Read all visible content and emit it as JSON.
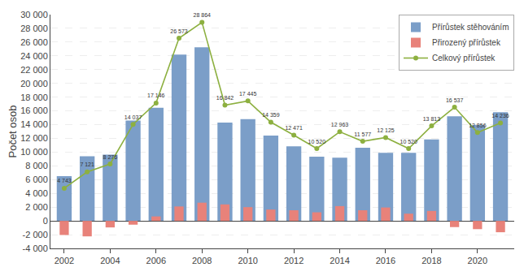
{
  "chart_data": {
    "type": "bar",
    "ylabel": "Počet osob",
    "categories": [
      "2002",
      null,
      "2004",
      null,
      "2006",
      null,
      "2008",
      null,
      "2010",
      null,
      "2012",
      null,
      "2014",
      null,
      "2016",
      null,
      "2018",
      null,
      "2020",
      null
    ],
    "series": [
      {
        "name": "Přírůstek stěhováním",
        "type": "bar",
        "color": "#7B9EC8",
        "values": [
          6500,
          9400,
          9650,
          14600,
          16450,
          24200,
          25250,
          14300,
          14800,
          12400,
          10850,
          9350,
          9200,
          10650,
          9900,
          9900,
          11850,
          15200,
          13950,
          15800
        ]
      },
      {
        "name": "Přirozený přírůstek",
        "type": "bar",
        "color": "#E8827A",
        "values": [
          -2050,
          -2250,
          -950,
          -550,
          650,
          2100,
          2650,
          2400,
          2000,
          1650,
          1550,
          1250,
          2150,
          1550,
          1950,
          1050,
          1450,
          -900,
          -1200,
          -1650
        ]
      },
      {
        "name": "Celkový přírůstek",
        "type": "line",
        "color": "#8DB040",
        "marker": "circle",
        "data_labels": true,
        "values": [
          4743,
          7121,
          8276,
          14037,
          17146,
          26573,
          28864,
          16842,
          17445,
          14359,
          12471,
          10520,
          12963,
          11577,
          12125,
          10520,
          13813,
          16537,
          12856,
          14236
        ],
        "value_labels": [
          "4 743",
          "7 121",
          "8 276",
          "14 037",
          "17 146",
          "26 573",
          "28 864",
          "16 842",
          "17 445",
          "14 359",
          "12 471",
          "10 520",
          "12 963",
          "11 577",
          "12 125",
          "10 520",
          "13 813",
          "16 537",
          "12 856",
          "14 236"
        ]
      }
    ],
    "ylim": [
      -4000,
      30000
    ],
    "yticks": [
      {
        "value": -4000,
        "label": "-4 000"
      },
      {
        "value": -2000,
        "label": "-2 000"
      },
      0,
      {
        "value": 2000,
        "label": "2 000"
      },
      {
        "value": 4000,
        "label": "4 000"
      },
      {
        "value": 6000,
        "label": "6 000"
      },
      {
        "value": 8000,
        "label": "8 000"
      },
      {
        "value": 10000,
        "label": "10 000"
      },
      {
        "value": 12000,
        "label": "12 000"
      },
      {
        "value": 14000,
        "label": "14 000"
      },
      {
        "value": 16000,
        "label": "16 000"
      },
      {
        "value": 18000,
        "label": "18 000"
      },
      {
        "value": 20000,
        "label": "20 000"
      },
      {
        "value": 22000,
        "label": "22 000"
      },
      {
        "value": 24000,
        "label": "24 000"
      },
      {
        "value": 26000,
        "label": "26 000"
      },
      {
        "value": 28000,
        "label": "28 000"
      },
      {
        "value": 30000,
        "label": "30 000"
      }
    ],
    "grid": true,
    "legend": "upper right"
  }
}
